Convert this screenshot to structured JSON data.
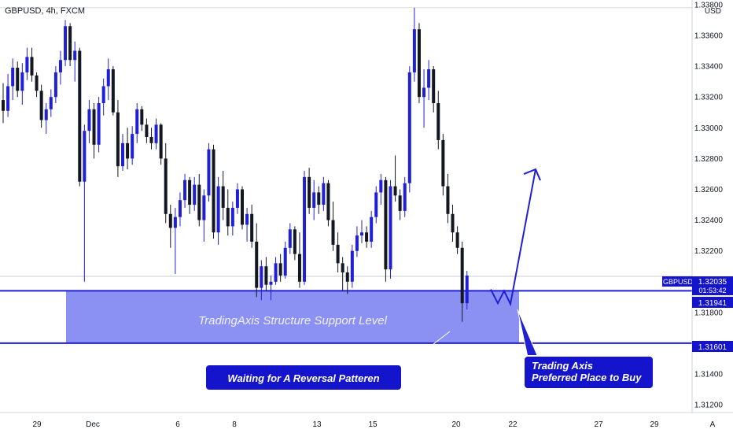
{
  "header": {
    "symbol_line": "GBPUSD, 4h, FXCM"
  },
  "currency": "USD",
  "corner_label": "A",
  "chart_data": {
    "type": "candlestick",
    "symbol": "GBPUSD",
    "timeframe": "4h",
    "source": "FXCM",
    "ylim": [
      1.3115,
      1.3383
    ],
    "y_ticks": [
      "1.33800",
      "1.33600",
      "1.33400",
      "1.33200",
      "1.33000",
      "1.32800",
      "1.32600",
      "1.32400",
      "1.32200",
      "1.31800",
      "1.31400",
      "1.31200"
    ],
    "x_ticks": [
      "29",
      "Dec",
      "6",
      "8",
      "13",
      "15",
      "20",
      "22",
      "27",
      "29"
    ],
    "grid": false,
    "price_labels": {
      "symbol": "GBPUSD",
      "current": "1.32035",
      "countdown": "01:53:42",
      "level_1": "1.31941",
      "level_2": "1.31601"
    },
    "support_zone": {
      "top": 1.31941,
      "bottom": 1.31601,
      "label": "TradingAxis Structure Support Level"
    },
    "callouts": [
      {
        "lines": [
          "Waiting for A Reversal Patteren"
        ]
      },
      {
        "lines": [
          "Trading Axis",
          "Preferred Place to Buy"
        ]
      }
    ],
    "projection_path": [
      1.3195,
      1.3186,
      1.3194,
      1.31855,
      1.3273
    ],
    "candles": [
      [
        1.3318,
        1.3329,
        1.3303,
        1.3311
      ],
      [
        1.3311,
        1.3335,
        1.3307,
        1.3327
      ],
      [
        1.3327,
        1.3345,
        1.3318,
        1.3339
      ],
      [
        1.3339,
        1.3343,
        1.332,
        1.3324
      ],
      [
        1.3324,
        1.3342,
        1.3315,
        1.3336
      ],
      [
        1.3336,
        1.3352,
        1.3331,
        1.3346
      ],
      [
        1.3346,
        1.3352,
        1.333,
        1.3334
      ],
      [
        1.3334,
        1.3336,
        1.332,
        1.3324
      ],
      [
        1.3324,
        1.3328,
        1.33,
        1.3305
      ],
      [
        1.3305,
        1.3316,
        1.3296,
        1.3312
      ],
      [
        1.3312,
        1.3325,
        1.3307,
        1.332
      ],
      [
        1.332,
        1.334,
        1.3316,
        1.3336
      ],
      [
        1.3336,
        1.335,
        1.3328,
        1.3344
      ],
      [
        1.3344,
        1.337,
        1.334,
        1.3366
      ],
      [
        1.3366,
        1.3368,
        1.334,
        1.3344
      ],
      [
        1.3344,
        1.3356,
        1.333,
        1.335
      ],
      [
        1.335,
        1.3352,
        1.3262,
        1.3265
      ],
      [
        1.3265,
        1.3302,
        1.32,
        1.3298
      ],
      [
        1.3298,
        1.3318,
        1.329,
        1.3312
      ],
      [
        1.3312,
        1.3316,
        1.328,
        1.3289
      ],
      [
        1.3289,
        1.332,
        1.3284,
        1.3316
      ],
      [
        1.3316,
        1.3332,
        1.3308,
        1.3327
      ],
      [
        1.3327,
        1.3345,
        1.3318,
        1.3338
      ],
      [
        1.3338,
        1.334,
        1.3308,
        1.331
      ],
      [
        1.331,
        1.3318,
        1.3268,
        1.3275
      ],
      [
        1.3275,
        1.3296,
        1.3272,
        1.329
      ],
      [
        1.329,
        1.33,
        1.3273,
        1.328
      ],
      [
        1.328,
        1.3301,
        1.3276,
        1.3296
      ],
      [
        1.3296,
        1.3316,
        1.329,
        1.3312
      ],
      [
        1.3312,
        1.3314,
        1.3298,
        1.3302
      ],
      [
        1.3302,
        1.3306,
        1.329,
        1.3294
      ],
      [
        1.3294,
        1.33,
        1.3286,
        1.329
      ],
      [
        1.329,
        1.3306,
        1.3286,
        1.3302
      ],
      [
        1.3302,
        1.3303,
        1.3276,
        1.328
      ],
      [
        1.328,
        1.329,
        1.3238,
        1.3244
      ],
      [
        1.3244,
        1.325,
        1.3222,
        1.3235
      ],
      [
        1.3235,
        1.3248,
        1.3205,
        1.3242
      ],
      [
        1.3242,
        1.3258,
        1.3236,
        1.3253
      ],
      [
        1.3253,
        1.327,
        1.3248,
        1.3266
      ],
      [
        1.3266,
        1.3268,
        1.3244,
        1.325
      ],
      [
        1.325,
        1.3268,
        1.3246,
        1.3263
      ],
      [
        1.3263,
        1.327,
        1.3236,
        1.324
      ],
      [
        1.324,
        1.326,
        1.3226,
        1.3256
      ],
      [
        1.3256,
        1.329,
        1.3252,
        1.3286
      ],
      [
        1.3286,
        1.3289,
        1.3228,
        1.3232
      ],
      [
        1.3232,
        1.3268,
        1.3224,
        1.3262
      ],
      [
        1.3262,
        1.3272,
        1.324,
        1.3248
      ],
      [
        1.3248,
        1.326,
        1.323,
        1.3236
      ],
      [
        1.3236,
        1.3252,
        1.323,
        1.3248
      ],
      [
        1.3248,
        1.3264,
        1.3244,
        1.326
      ],
      [
        1.326,
        1.3262,
        1.3234,
        1.3237
      ],
      [
        1.3237,
        1.3248,
        1.3226,
        1.3244
      ],
      [
        1.3244,
        1.325,
        1.3222,
        1.3226
      ],
      [
        1.3226,
        1.3238,
        1.319,
        1.3196
      ],
      [
        1.3196,
        1.3214,
        1.3188,
        1.321
      ],
      [
        1.321,
        1.3216,
        1.3194,
        1.3198
      ],
      [
        1.3198,
        1.3204,
        1.3188,
        1.32
      ],
      [
        1.32,
        1.3216,
        1.3198,
        1.3212
      ],
      [
        1.3212,
        1.3218,
        1.32,
        1.3204
      ],
      [
        1.3204,
        1.3226,
        1.3202,
        1.3222
      ],
      [
        1.3222,
        1.3238,
        1.3218,
        1.3234
      ],
      [
        1.3234,
        1.3236,
        1.3214,
        1.3218
      ],
      [
        1.3218,
        1.3232,
        1.3196,
        1.32
      ],
      [
        1.32,
        1.3272,
        1.3198,
        1.3268
      ],
      [
        1.3268,
        1.3274,
        1.3244,
        1.3248
      ],
      [
        1.3248,
        1.3266,
        1.324,
        1.3258
      ],
      [
        1.3258,
        1.3262,
        1.3244,
        1.325
      ],
      [
        1.325,
        1.3268,
        1.3246,
        1.3264
      ],
      [
        1.3264,
        1.3266,
        1.3236,
        1.324
      ],
      [
        1.324,
        1.3252,
        1.322,
        1.3224
      ],
      [
        1.3224,
        1.3232,
        1.3206,
        1.3212
      ],
      [
        1.3212,
        1.3216,
        1.3194,
        1.3206
      ],
      [
        1.3206,
        1.321,
        1.3192,
        1.32
      ],
      [
        1.32,
        1.3224,
        1.3196,
        1.322
      ],
      [
        1.322,
        1.3236,
        1.3216,
        1.323
      ],
      [
        1.323,
        1.324,
        1.3225,
        1.3232
      ],
      [
        1.3232,
        1.3236,
        1.3222,
        1.3226
      ],
      [
        1.3226,
        1.3246,
        1.3222,
        1.3242
      ],
      [
        1.3242,
        1.3262,
        1.3238,
        1.3258
      ],
      [
        1.3258,
        1.327,
        1.325,
        1.3266
      ],
      [
        1.3266,
        1.3268,
        1.32,
        1.3208
      ],
      [
        1.3208,
        1.3266,
        1.3202,
        1.3262
      ],
      [
        1.3262,
        1.3282,
        1.3252,
        1.3256
      ],
      [
        1.3256,
        1.326,
        1.324,
        1.3246
      ],
      [
        1.3246,
        1.3268,
        1.3242,
        1.3264
      ],
      [
        1.3264,
        1.334,
        1.3258,
        1.3336
      ],
      [
        1.3336,
        1.3378,
        1.333,
        1.3364
      ],
      [
        1.3364,
        1.3368,
        1.3316,
        1.332
      ],
      [
        1.332,
        1.3338,
        1.33,
        1.3326
      ],
      [
        1.3326,
        1.3344,
        1.3318,
        1.3338
      ],
      [
        1.3338,
        1.334,
        1.331,
        1.3316
      ],
      [
        1.3316,
        1.3324,
        1.3286,
        1.3292
      ],
      [
        1.3292,
        1.3296,
        1.3256,
        1.3262
      ],
      [
        1.3262,
        1.327,
        1.3238,
        1.3244
      ],
      [
        1.3244,
        1.325,
        1.3226,
        1.3232
      ],
      [
        1.3232,
        1.3236,
        1.3218,
        1.3222
      ],
      [
        1.3222,
        1.3226,
        1.3174,
        1.3186
      ],
      [
        1.3186,
        1.3207,
        1.3182,
        1.3204
      ]
    ]
  }
}
